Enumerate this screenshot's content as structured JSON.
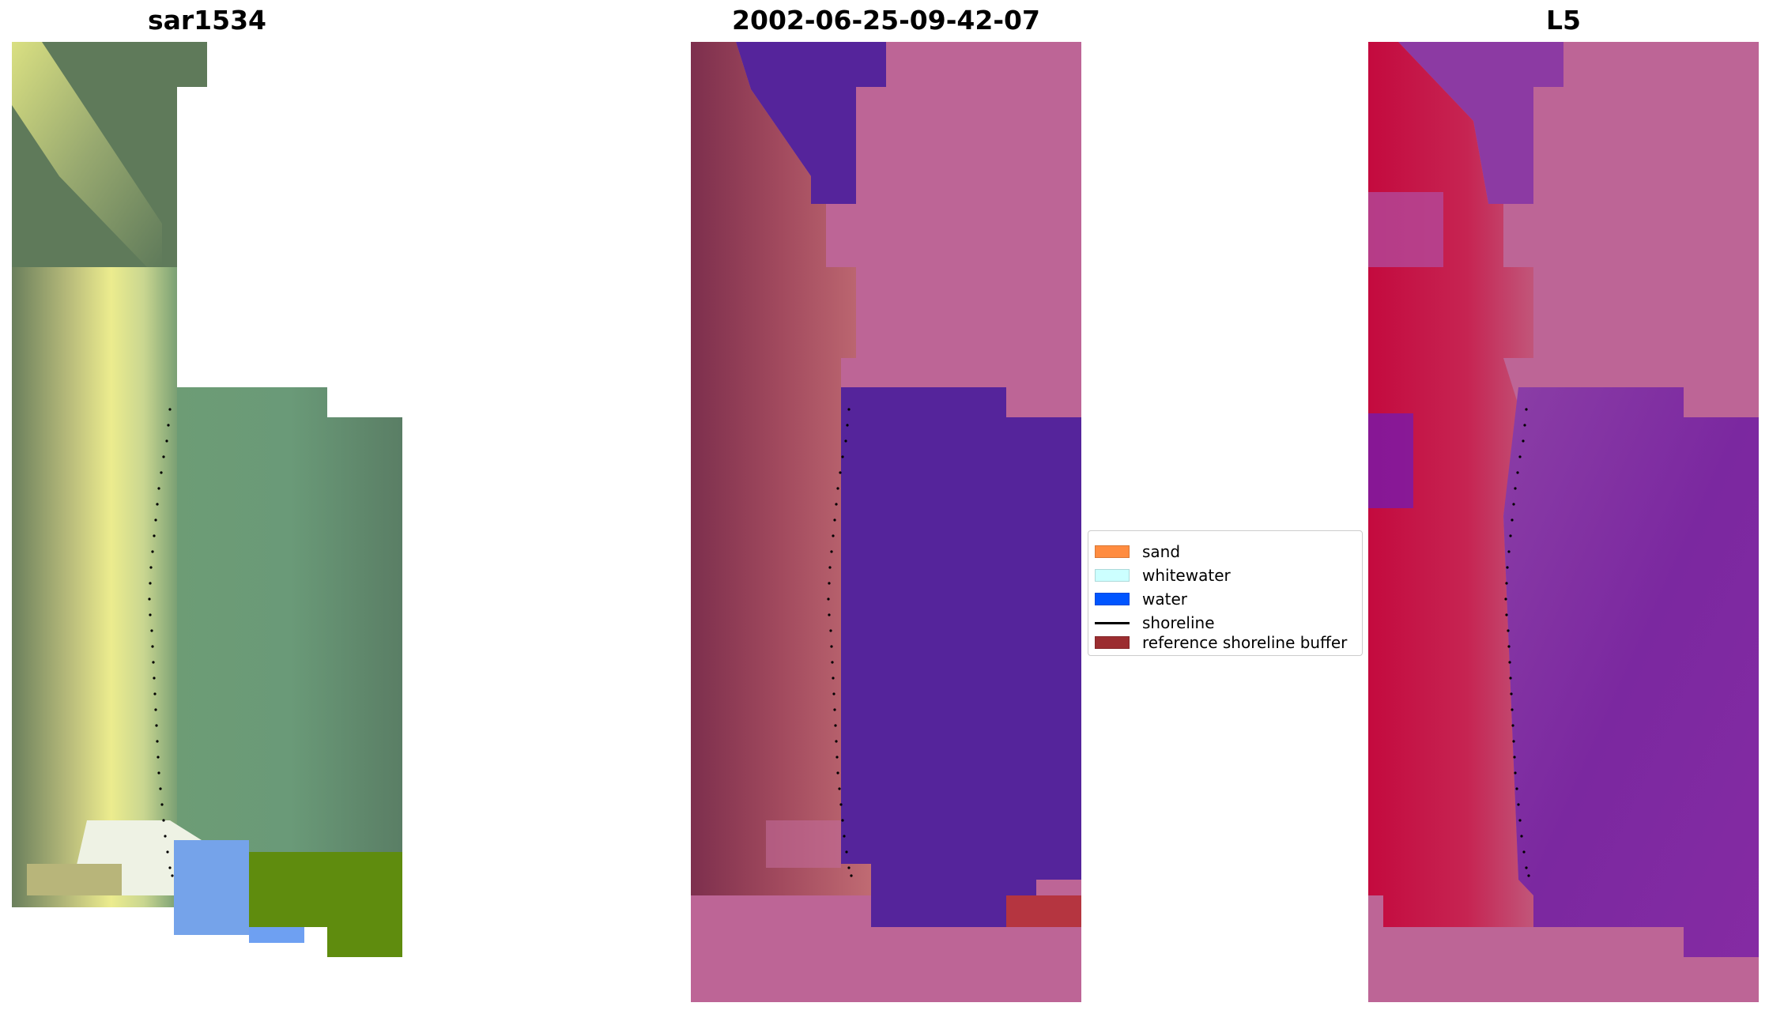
{
  "panels": [
    {
      "title": "sar1534"
    },
    {
      "title": "2002-06-25-09-42-07"
    },
    {
      "title": "L5"
    }
  ],
  "legend": {
    "items": [
      {
        "label": "sand",
        "kind": "patch",
        "color": "#ff8c40"
      },
      {
        "label": "whitewater",
        "kind": "patch",
        "color": "#ccffff"
      },
      {
        "label": "water",
        "kind": "patch",
        "color": "#0055ff"
      },
      {
        "label": "shoreline",
        "kind": "line",
        "color": "#000000"
      },
      {
        "label": "reference shoreline buffer",
        "kind": "patch",
        "color": "#9b2d30"
      }
    ]
  },
  "colors": {
    "rgb_green": "#5e7e5c",
    "rgb_sand": "#e6e184",
    "rgb_whitewater": "#e8eedd",
    "rgb_water": "#6fa0f0",
    "rgb_vegetation": "#628d08",
    "class_land": "#bd6596",
    "class_water": "#55249b",
    "class_sand": "#b65c70",
    "class_buffer": "#b53540",
    "ndwi_land": "#bd6596",
    "ndwi_water": "#86339e",
    "ndwi_sand": "#c81f4e"
  }
}
